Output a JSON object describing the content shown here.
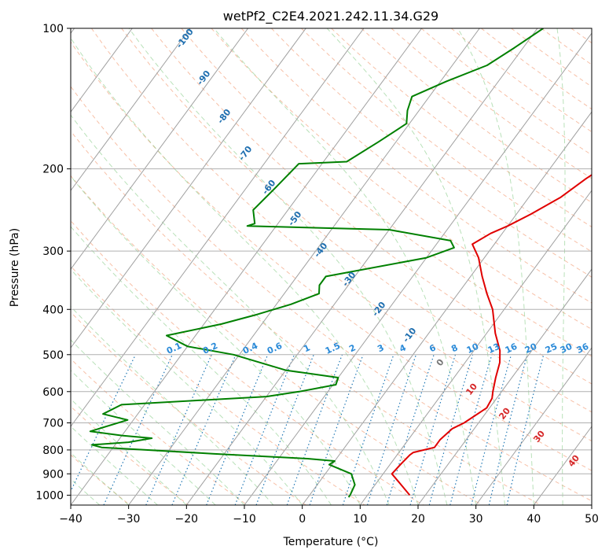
{
  "chart_data": {
    "type": "line",
    "title": "wetPf2_C2E4.2021.242.11.34.G29",
    "xlabel": "Temperature (°C)",
    "ylabel": "Pressure (hPa)",
    "xlim": [
      -40,
      50
    ],
    "ylim": [
      1050,
      100
    ],
    "y_scale": "log",
    "grid": true,
    "x_ticks": [
      -40,
      -30,
      -20,
      -10,
      0,
      10,
      20,
      30,
      40,
      50
    ],
    "y_ticks": [
      100,
      200,
      300,
      400,
      500,
      600,
      700,
      800,
      900,
      1000
    ],
    "series": [
      {
        "role": "temperature",
        "color": "#e00000",
        "points": [
          [
            1000,
            17.3
          ],
          [
            950,
            14.5
          ],
          [
            900,
            11.5
          ],
          [
            860,
            11.8
          ],
          [
            820,
            12.2
          ],
          [
            810,
            12.5
          ],
          [
            790,
            15.5
          ],
          [
            760,
            15.5
          ],
          [
            720,
            16.2
          ],
          [
            700,
            17.5
          ],
          [
            650,
            19.5
          ],
          [
            620,
            19.2
          ],
          [
            600,
            18.5
          ],
          [
            560,
            17.2
          ],
          [
            520,
            16.0
          ],
          [
            490,
            14.5
          ],
          [
            450,
            11.5
          ],
          [
            400,
            8.0
          ],
          [
            370,
            5.0
          ],
          [
            340,
            2.0
          ],
          [
            310,
            -1.0
          ],
          [
            290,
            -3.8
          ],
          [
            275,
            -2.0
          ],
          [
            265,
            0.0
          ],
          [
            250,
            2.5
          ],
          [
            230,
            5.5
          ],
          [
            210,
            7.5
          ],
          [
            195,
            9.5
          ],
          [
            180,
            10.5
          ],
          [
            160,
            12.0
          ],
          [
            150,
            13.5
          ],
          [
            140,
            16.5
          ],
          [
            130,
            19.5
          ],
          [
            120,
            22.0
          ],
          [
            110,
            24.5
          ],
          [
            100,
            27.0
          ]
        ]
      },
      {
        "role": "dewpoint",
        "color": "#008000",
        "points": [
          [
            1010,
            7.0
          ],
          [
            1000,
            7.0
          ],
          [
            950,
            6.5
          ],
          [
            900,
            4.5
          ],
          [
            860,
            -0.5
          ],
          [
            845,
            0.0
          ],
          [
            835,
            -5.0
          ],
          [
            815,
            -22.0
          ],
          [
            800,
            -34.0
          ],
          [
            790,
            -42.0
          ],
          [
            780,
            -44.0
          ],
          [
            770,
            -38.0
          ],
          [
            755,
            -34.5
          ],
          [
            745,
            -40.0
          ],
          [
            730,
            -46.0
          ],
          [
            690,
            -41.0
          ],
          [
            670,
            -46.0
          ],
          [
            640,
            -44.0
          ],
          [
            615,
            -20.0
          ],
          [
            600,
            -15.0
          ],
          [
            580,
            -9.5
          ],
          [
            560,
            -10.0
          ],
          [
            540,
            -20.0
          ],
          [
            500,
            -31.0
          ],
          [
            480,
            -40.0
          ],
          [
            455,
            -45.0
          ],
          [
            430,
            -37.0
          ],
          [
            410,
            -32.0
          ],
          [
            390,
            -27.5
          ],
          [
            370,
            -24.0
          ],
          [
            355,
            -25.0
          ],
          [
            340,
            -25.0
          ],
          [
            310,
            -10.0
          ],
          [
            295,
            -6.5
          ],
          [
            285,
            -8.0
          ],
          [
            270,
            -20.0
          ],
          [
            265,
            -45.0
          ],
          [
            262,
            -44.0
          ],
          [
            245,
            -46.0
          ],
          [
            220,
            -45.0
          ],
          [
            195,
            -44.0
          ],
          [
            193,
            -36.0
          ],
          [
            175,
            -33.0
          ],
          [
            160,
            -30.5
          ],
          [
            150,
            -32.0
          ],
          [
            140,
            -33.0
          ],
          [
            130,
            -29.0
          ],
          [
            120,
            -24.0
          ],
          [
            110,
            -21.5
          ],
          [
            100,
            -19.0
          ]
        ]
      }
    ],
    "dry_adiabat_labels": [
      "-100",
      "-90",
      "-80",
      "-70",
      "-60",
      "-50",
      "-40",
      "-30",
      "-20",
      "-10",
      "0",
      "10",
      "20",
      "30",
      "40"
    ],
    "mixing_ratio_labels": [
      "0.1",
      "0.2",
      "0.4",
      "0.6",
      "1",
      "1.5",
      "2",
      "3",
      "4",
      "6",
      "8",
      "10",
      "13",
      "16",
      "20",
      "25",
      "30",
      "36"
    ]
  }
}
